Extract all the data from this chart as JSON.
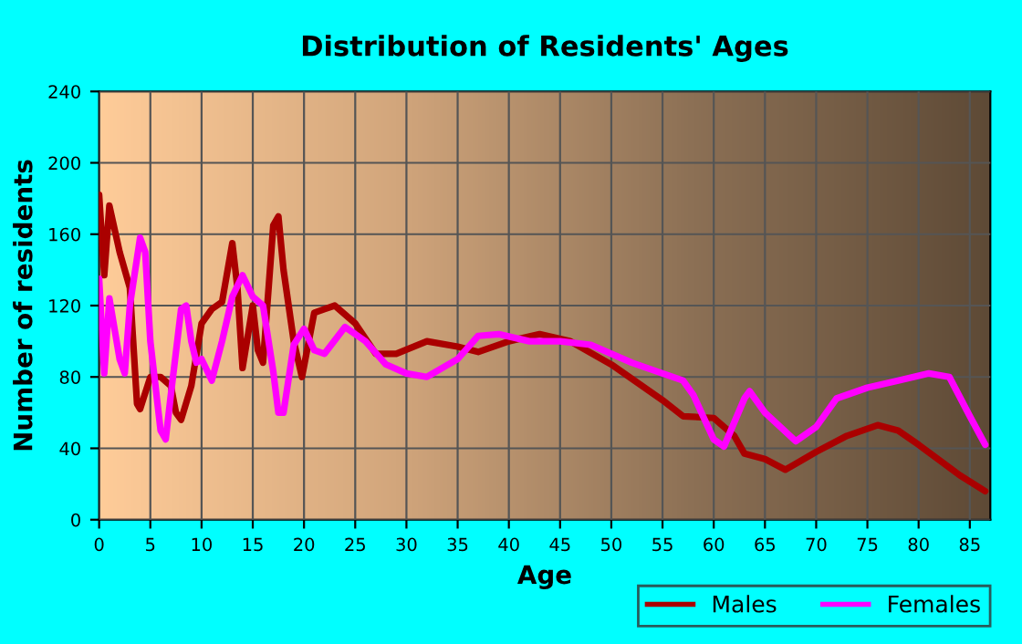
{
  "chart_data": {
    "type": "line",
    "title": "Distribution of Residents' Ages",
    "xlabel": "Age",
    "ylabel": "Number of residents",
    "xlim": [
      0,
      87
    ],
    "xticks": [
      0,
      5,
      10,
      15,
      20,
      25,
      30,
      35,
      40,
      45,
      50,
      55,
      60,
      65,
      70,
      75,
      80,
      85
    ],
    "ylim": [
      0,
      240
    ],
    "yticks": [
      0,
      40,
      80,
      120,
      160,
      200,
      240
    ],
    "grid": true,
    "legend": "bottom right",
    "marker": "none",
    "line_style": "solid",
    "series": [
      {
        "name": "Males",
        "color": "#aa0000",
        "x": [
          0,
          0.5,
          1,
          2,
          3,
          3.7,
          4,
          5,
          6,
          7,
          7.5,
          8,
          9,
          10,
          11,
          12,
          13,
          13.5,
          14,
          15,
          15.5,
          16,
          17,
          17.5,
          18,
          19,
          19.8,
          21,
          22,
          23,
          25,
          27,
          29,
          32,
          35,
          37,
          40,
          43,
          46,
          50,
          55,
          57,
          60,
          62,
          63,
          65,
          67,
          70,
          73,
          76,
          78,
          80,
          84,
          86.5
        ],
        "values": [
          182,
          137,
          176,
          150,
          130,
          65,
          62,
          80,
          80,
          75,
          60,
          56,
          75,
          110,
          118,
          122,
          155,
          130,
          85,
          120,
          95,
          88,
          165,
          170,
          140,
          100,
          80,
          116,
          118,
          120,
          110,
          93,
          93,
          100,
          97,
          94,
          100,
          104,
          100,
          87,
          67,
          58,
          57,
          47,
          37,
          34,
          28,
          38,
          47,
          53,
          50,
          42,
          25,
          16
        ]
      },
      {
        "name": "Females",
        "color": "#ff00ff",
        "x": [
          0,
          0.5,
          1,
          2,
          2.5,
          3,
          4,
          4.5,
          5,
          6,
          6.5,
          7,
          8,
          8.5,
          9,
          9.5,
          10,
          11,
          12,
          13,
          14,
          15,
          16,
          17,
          17.5,
          18,
          19,
          20,
          21,
          22,
          24,
          26,
          28,
          30,
          32,
          35,
          37,
          39,
          42,
          45,
          48,
          52,
          55,
          57,
          58,
          60,
          61,
          63,
          63.5,
          65,
          68,
          70,
          72,
          75,
          78,
          81,
          83,
          85,
          86.5
        ],
        "values": [
          135,
          82,
          124,
          90,
          82,
          120,
          158,
          150,
          100,
          50,
          45,
          70,
          118,
          120,
          100,
          88,
          90,
          78,
          100,
          125,
          137,
          125,
          120,
          83,
          60,
          60,
          98,
          107,
          95,
          93,
          108,
          100,
          87,
          82,
          80,
          90,
          103,
          104,
          100,
          100,
          98,
          88,
          82,
          78,
          70,
          45,
          41,
          68,
          72,
          60,
          44,
          52,
          68,
          74,
          78,
          82,
          80,
          58,
          42
        ]
      }
    ]
  }
}
